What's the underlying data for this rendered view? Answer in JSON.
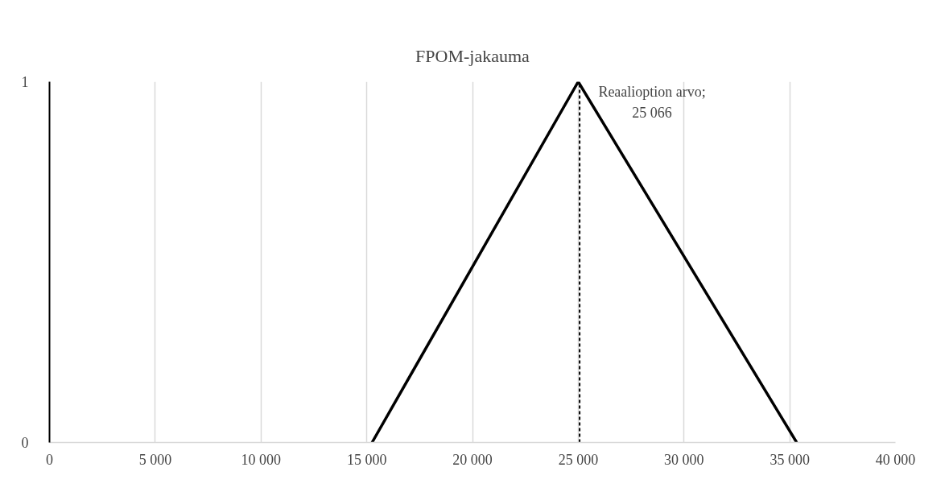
{
  "chart_data": {
    "type": "line",
    "title": "FPOM-jakauma",
    "x": [
      15250,
      25000,
      35330
    ],
    "series": [
      {
        "color": "#000000",
        "values": [
          0,
          1,
          0
        ]
      }
    ],
    "xlim": [
      0,
      40000
    ],
    "xticks": [
      {
        "value": 0,
        "label": "0"
      },
      {
        "value": 5000,
        "label": "5 000"
      },
      {
        "value": 10000,
        "label": "10 000"
      },
      {
        "value": 15000,
        "label": "15 000"
      },
      {
        "value": 20000,
        "label": "20 000"
      },
      {
        "value": 25000,
        "label": "25 000"
      },
      {
        "value": 30000,
        "label": "30 000"
      },
      {
        "value": 35000,
        "label": "35 000"
      },
      {
        "value": 40000,
        "label": "40 000"
      }
    ],
    "ylim": [
      0,
      1
    ],
    "yticks": [
      0,
      1
    ],
    "grid": "x",
    "marker": "none",
    "line_style": "solid",
    "ref_lines": [
      {
        "axis": "x",
        "value": 25066,
        "label": "Reaalioption arvo;\n25 066",
        "color": "#000000",
        "line_style": "dashed"
      }
    ]
  }
}
